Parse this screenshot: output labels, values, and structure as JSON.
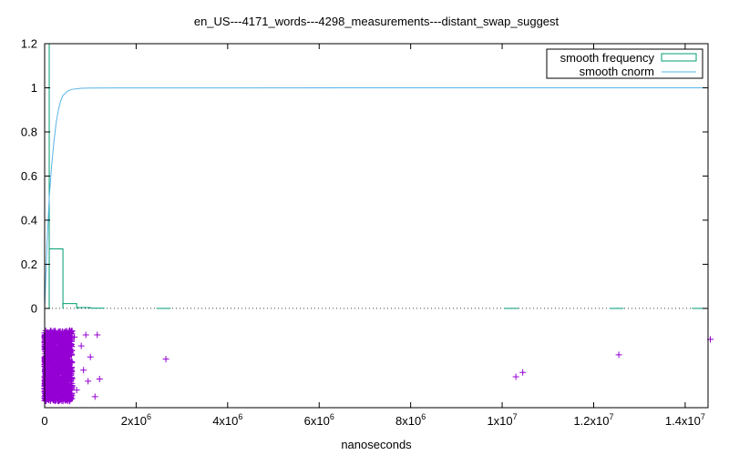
{
  "chart_data": {
    "type": "histogram-with-scatter",
    "title": "en_US---4171_words---4298_measurements---distant_swap_suggest",
    "xlabel": "nanoseconds",
    "ylabel": "",
    "xlim": [
      0,
      14500000
    ],
    "ylim": [
      -0.45,
      1.2
    ],
    "x_ticks": [
      {
        "value": 0,
        "base": "0",
        "exp": ""
      },
      {
        "value": 2000000,
        "base": "2x10",
        "exp": "6"
      },
      {
        "value": 4000000,
        "base": "4x10",
        "exp": "6"
      },
      {
        "value": 6000000,
        "base": "6x10",
        "exp": "6"
      },
      {
        "value": 8000000,
        "base": "8x10",
        "exp": "6"
      },
      {
        "value": 10000000,
        "base": "1x10",
        "exp": "7"
      },
      {
        "value": 12000000,
        "base": "1.2x10",
        "exp": "7"
      },
      {
        "value": 14000000,
        "base": "1.4x10",
        "exp": "7"
      }
    ],
    "y_ticks": [
      {
        "value": 0,
        "label": "0"
      },
      {
        "value": 0.2,
        "label": "0.2"
      },
      {
        "value": 0.4,
        "label": "0.4"
      },
      {
        "value": 0.6,
        "label": "0.6"
      },
      {
        "value": 0.8,
        "label": "0.8"
      },
      {
        "value": 1.0,
        "label": "1"
      },
      {
        "value": 1.2,
        "label": "1.2"
      }
    ],
    "legend_position": "top-right",
    "zero_line": "dotted",
    "series": [
      {
        "name": "smooth frequency",
        "kind": "histogram-steps",
        "color": "#009e73",
        "bars": [
          {
            "x0": 0,
            "x1": 100000,
            "y": 1.2
          },
          {
            "x0": 100000,
            "x1": 400000,
            "y": 0.27
          },
          {
            "x0": 400000,
            "x1": 700000,
            "y": 0.022
          },
          {
            "x0": 700000,
            "x1": 1000000,
            "y": 0.004
          },
          {
            "x0": 1000000,
            "x1": 1300000,
            "y": 0.001
          },
          {
            "x0": 2450000,
            "x1": 2750000,
            "y": 0.0003
          },
          {
            "x0": 10050000,
            "x1": 10350000,
            "y": 0.0003
          },
          {
            "x0": 12350000,
            "x1": 12650000,
            "y": 0.0003
          },
          {
            "x0": 14150000,
            "x1": 14450000,
            "y": 0.0003
          }
        ]
      },
      {
        "name": "smooth cnorm",
        "kind": "line",
        "color": "#56b4e9",
        "points": [
          [
            0,
            0
          ],
          [
            50000,
            0.28
          ],
          [
            100000,
            0.5
          ],
          [
            150000,
            0.64
          ],
          [
            200000,
            0.75
          ],
          [
            250000,
            0.84
          ],
          [
            300000,
            0.9
          ],
          [
            350000,
            0.94
          ],
          [
            400000,
            0.965
          ],
          [
            500000,
            0.985
          ],
          [
            600000,
            0.993
          ],
          [
            800000,
            0.998
          ],
          [
            1000000,
            0.999
          ],
          [
            2000000,
            0.9995
          ],
          [
            14500000,
            1.0
          ]
        ]
      },
      {
        "name": "",
        "kind": "scatter",
        "color": "#9400d3",
        "marker": "+",
        "dense_cluster": {
          "x_min": 0,
          "x_max": 600000,
          "y_min": -0.42,
          "y_max": -0.1,
          "count": 4270
        },
        "sparse_points": [
          [
            650000,
            -0.13
          ],
          [
            700000,
            -0.37
          ],
          [
            800000,
            -0.17
          ],
          [
            850000,
            -0.28
          ],
          [
            900000,
            -0.12
          ],
          [
            950000,
            -0.33
          ],
          [
            1000000,
            -0.22
          ],
          [
            1100000,
            -0.4
          ],
          [
            1150000,
            -0.12
          ],
          [
            1200000,
            -0.32
          ],
          [
            2650000,
            -0.23
          ],
          [
            10300000,
            -0.31
          ],
          [
            10450000,
            -0.29
          ],
          [
            12550000,
            -0.21
          ],
          [
            14550000,
            -0.14
          ]
        ]
      }
    ]
  }
}
